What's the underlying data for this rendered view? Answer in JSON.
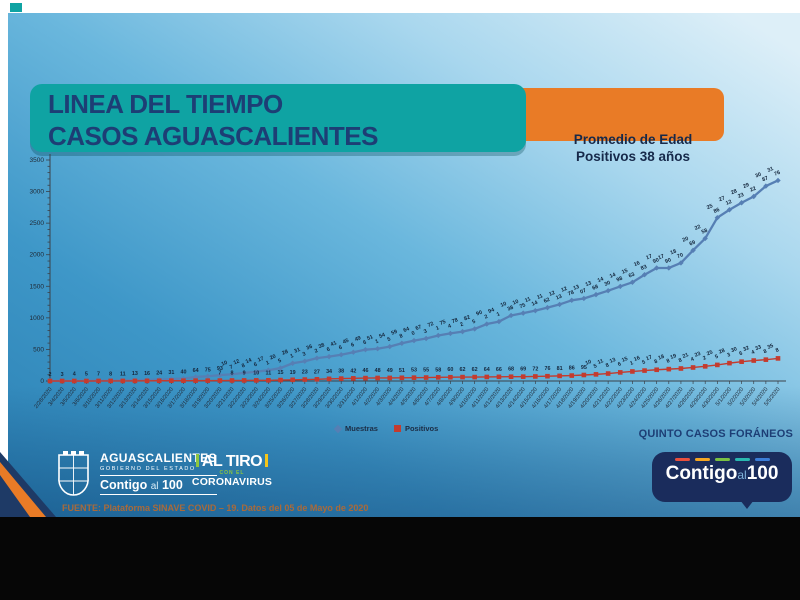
{
  "slide": {
    "title_line1": "LINEA DEL TIEMPO",
    "title_line2": "CASOS AGUASCALIENTES",
    "promedio_line1": "Promedio de Edad",
    "promedio_line2": "Positivos 38 años",
    "quinto_note": "QUINTO CASOS FORÁNEOS",
    "fuente": "FUENTE: Plataforma SINAVE COVID – 19. Datos del 05 de Mayo de 2020"
  },
  "footer": {
    "gov_name": "AGUASCALIENTES",
    "gov_subtitle": "GOBIERNO DEL ESTADO",
    "contigo": "Contigo",
    "al": "al",
    "n100": "100",
    "altiro_top": "AL TIRO",
    "altiro_mid": "CON EL",
    "altiro_bottom": "CORONAVIRUS"
  },
  "colors": {
    "teal_banner": "#0fa3a3",
    "orange_banner": "#e97b26",
    "title_text": "#1d3e75",
    "muestras": "#567fb4",
    "positivos": "#c43b2e",
    "bubble_navy": "#1a2c5c",
    "dash_colors": [
      "#e94f3d",
      "#f5a623",
      "#7ac143",
      "#29b8b0",
      "#3b7dd8"
    ]
  },
  "chart_data": {
    "type": "line",
    "title": "LINEA DEL TIEMPO CASOS AGUASCALIENTES",
    "xlabel": "",
    "ylabel": "",
    "ylim": [
      0,
      3500
    ],
    "yticks": [
      0,
      500,
      1000,
      1500,
      2000,
      2500,
      3000,
      3500
    ],
    "grid": false,
    "legend_position": "bottom",
    "annotations": [
      "Promedio de Edad Positivos 38 años",
      "QUINTO CASOS FORÁNEOS"
    ],
    "x": [
      "2/28/2020",
      "3/4/2020",
      "3/5/2020",
      "3/6/2020",
      "3/10/2020",
      "3/11/2020",
      "3/12/2020",
      "3/13/2020",
      "3/14/2020",
      "3/15/2020",
      "3/16/2020",
      "3/17/2020",
      "3/18/2020",
      "3/19/2020",
      "3/20/2020",
      "3/21/2020",
      "3/22/2020",
      "3/23/2020",
      "3/24/2020",
      "3/25/2020",
      "3/26/2020",
      "3/27/2020",
      "3/28/2020",
      "3/29/2020",
      "3/30/2020",
      "3/31/2020",
      "4/1/2020",
      "4/2/2020",
      "4/3/2020",
      "4/4/2020",
      "4/5/2020",
      "4/6/2020",
      "4/7/2020",
      "4/8/2020",
      "4/9/2020",
      "4/10/2020",
      "4/11/2020",
      "4/12/2020",
      "4/13/2020",
      "4/14/2020",
      "4/15/2020",
      "4/16/2020",
      "4/17/2020",
      "4/18/2020",
      "4/19/2020",
      "4/20/2020",
      "4/21/2020",
      "4/22/2020",
      "4/23/2020",
      "4/24/2020",
      "4/25/2020",
      "4/26/2020",
      "4/27/2020",
      "4/28/2020",
      "4/29/2020",
      "4/30/2020",
      "5/1/2020",
      "5/2/2020",
      "5/3/2020",
      "5/4/2020",
      "5/5/2020"
    ],
    "series": [
      {
        "name": "Muestras",
        "color": "#567fb4",
        "marker": "diamond",
        "values": [
          2,
          3,
          4,
          5,
          7,
          8,
          11,
          13,
          16,
          24,
          31,
          40,
          64,
          75,
          93,
          107,
          128,
          146,
          171,
          205,
          281,
          313,
          362,
          386,
          416,
          456,
          496,
          511,
          545,
          598,
          640,
          673,
          721,
          754,
          782,
          825,
          902,
          941,
          1038,
          1075,
          1114,
          1162,
          1213,
          1278,
          1307,
          1368,
          1430,
          1498,
          1563,
          1683,
          1790,
          1790,
          1870,
          2069,
          2258,
          2586,
          2712,
          2823,
          2922,
          3087,
          3176
        ]
      },
      {
        "name": "Positivos",
        "color": "#c43b2e",
        "marker": "square",
        "values": [
          0,
          0,
          0,
          0,
          1,
          1,
          1,
          2,
          3,
          4,
          5,
          5,
          6,
          6,
          7,
          8,
          9,
          10,
          11,
          15,
          19,
          23,
          27,
          34,
          38,
          42,
          46,
          48,
          49,
          51,
          53,
          55,
          58,
          60,
          62,
          62,
          64,
          66,
          68,
          69,
          72,
          76,
          81,
          86,
          95,
          105,
          118,
          136,
          151,
          165,
          178,
          188,
          198,
          214,
          232,
          255,
          283,
          306,
          324,
          338,
          358
        ]
      }
    ]
  }
}
